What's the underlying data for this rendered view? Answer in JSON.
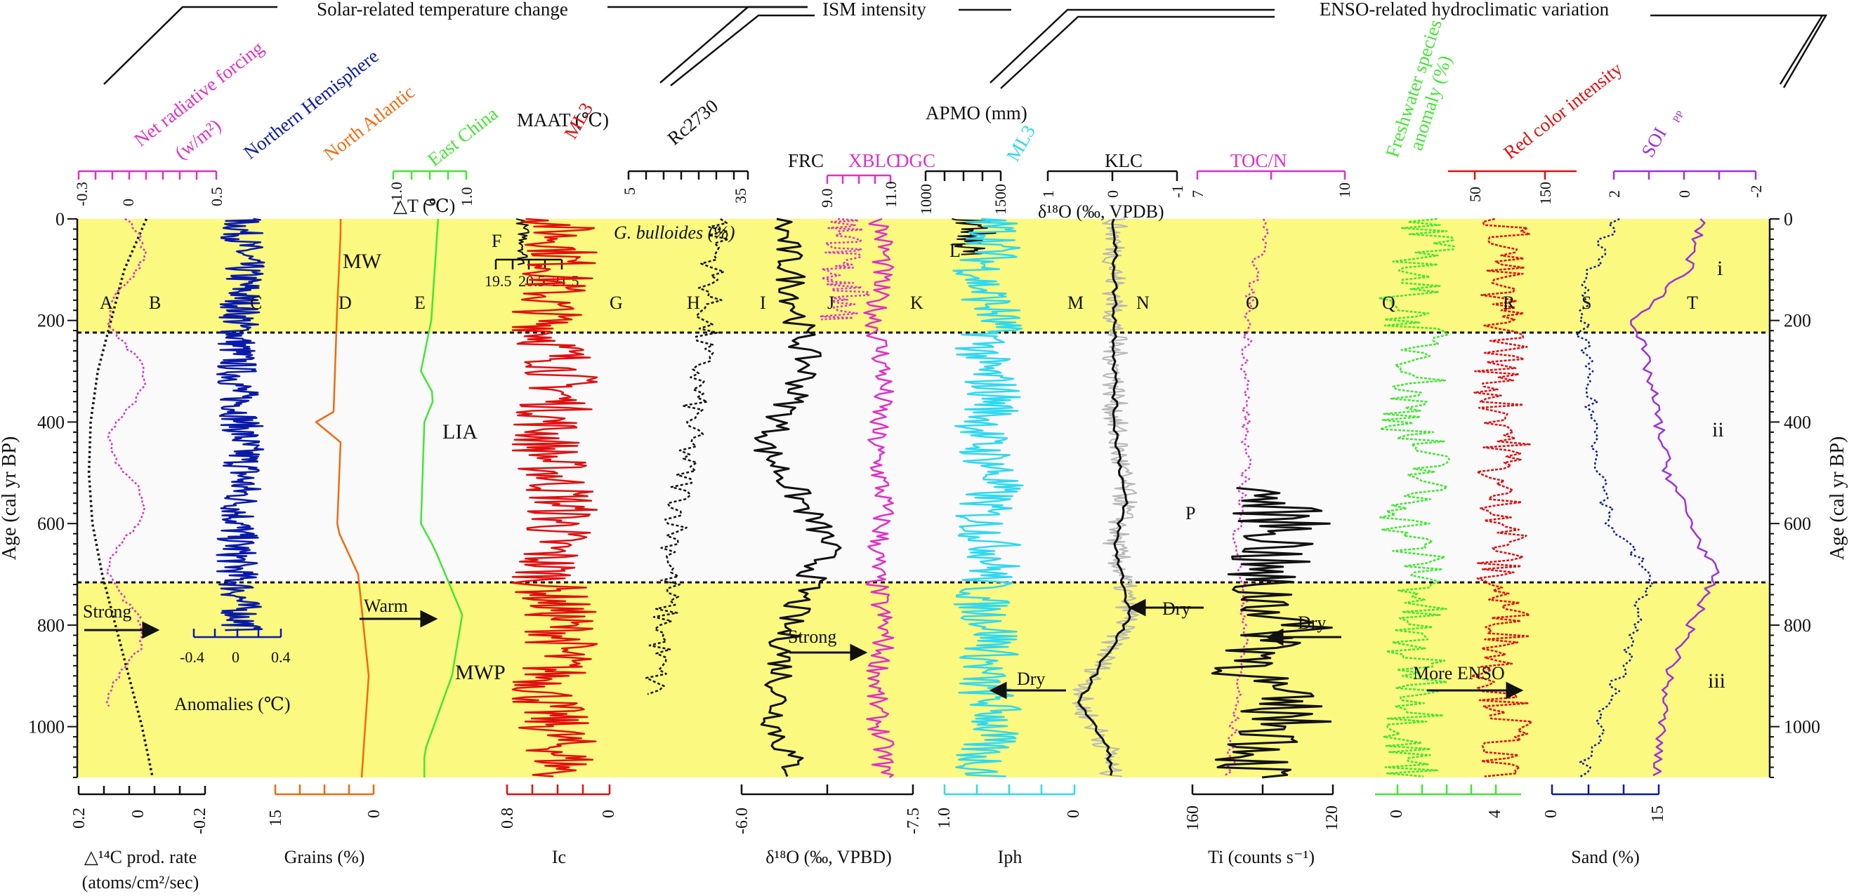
{
  "chart_data": {
    "type": "line",
    "layout": "stacked-proxy-columns",
    "colors": {
      "band_warm": "#fbf97f",
      "black": "#111111",
      "magenta": "#e030c8",
      "navy": "#0a1aa8",
      "orange": "#f06a10",
      "green": "#44e634",
      "red": "#e01010",
      "cyan": "#30d8f0",
      "gray": "#b8b8b8",
      "violet": "#a030e0"
    },
    "age_axis": {
      "label": "Age (cal yr BP)",
      "range": [
        0,
        1100
      ],
      "ticks": [
        "0",
        "200",
        "400",
        "600",
        "800",
        "1000"
      ]
    },
    "periods": [
      {
        "name": "MW",
        "roman": "i",
        "from": 0,
        "to": 200
      },
      {
        "name": "LIA",
        "roman": "ii",
        "from": 200,
        "to": 640
      },
      {
        "name": "MWP",
        "roman": "iii",
        "from": 640,
        "to": 1100
      }
    ],
    "groups": [
      {
        "label": "Solar-related temperature change"
      },
      {
        "label": "ISM intensity"
      },
      {
        "label": "ENSO-related hydroclimatic variation"
      }
    ],
    "top_titles": {
      "net_radiative": "Net radiative forcing",
      "net_radiative_unit": "(w/m²)",
      "nh": "Northern Hemisphere",
      "na": "North Atlantic",
      "ec": "East China",
      "maat": "MAAT (℃)",
      "ml3_g": "ML3",
      "rc": "Rc2730",
      "frc": "FRC",
      "xblc": "XBLC",
      "dgc": "DGC",
      "apmo": "APMO (mm)",
      "ml3_m": "ML3",
      "klc": "KLC",
      "toc": "TOC/N",
      "fw": "Freshwater species",
      "fw2": "anomaly (%)",
      "red": "Red color intensity",
      "soi": "SOI",
      "soi_sub": "PP"
    },
    "top_ticks": {
      "net_radiative": [
        "-0.3",
        "0",
        "0.5"
      ],
      "ec": [
        "-1.0",
        "0",
        "1.0"
      ],
      "rc": [
        "5",
        "35"
      ],
      "xblc": [
        "9.0",
        "11.0"
      ],
      "apmo": [
        "1000",
        "1500"
      ],
      "klc": [
        "1",
        "0",
        "-1"
      ],
      "toc": [
        "7",
        "10"
      ],
      "red": [
        "50",
        "150"
      ],
      "soi": [
        "2",
        "0",
        "-2"
      ],
      "maat_inner": [
        "19.5",
        "20.5",
        "21.5"
      ]
    },
    "inner_labels": {
      "delta_t": "△T (℃)",
      "gbull": "G. bulloides (%)",
      "d18o_klc": "δ¹⁸O (‰, VPDB)",
      "anomalies": "Anomalies (℃)",
      "anom_ticks": [
        "-0.4",
        "0",
        "0.4"
      ]
    },
    "bottom_axes": [
      {
        "label": "△¹⁴C prod. rate",
        "label2": "(atoms/cm²/sec)",
        "ticks": [
          "0.2",
          "0",
          "-0.2"
        ]
      },
      {
        "label": "Grains (%)",
        "ticks": [
          "15",
          "0"
        ]
      },
      {
        "label": "Ic",
        "ticks": [
          "0.8",
          "0"
        ]
      },
      {
        "label": "δ¹⁸O (‰, VPBD)",
        "ticks": [
          "-6.0",
          "-7.5"
        ]
      },
      {
        "label": "Iph",
        "ticks": [
          "1.0",
          "0"
        ]
      },
      {
        "label": "Ti (counts s⁻¹)",
        "ticks": [
          "160",
          "120"
        ]
      },
      {
        "label": "",
        "ticks": [
          "0",
          "4"
        ]
      },
      {
        "label": "Sand (%)",
        "ticks": [
          "0",
          "15"
        ]
      }
    ],
    "series_letters": [
      "A",
      "B",
      "C",
      "D",
      "E",
      "F",
      "G",
      "H",
      "I",
      "J",
      "K",
      "L",
      "M",
      "N",
      "O",
      "P",
      "Q",
      "R",
      "S",
      "T"
    ],
    "annotations": {
      "strong": "Strong",
      "warm": "Warm",
      "dry": "Dry",
      "more_enso": "More ENSO"
    },
    "series_profiles": [
      {
        "name": "A",
        "points": [
          [
            0,
            0.75
          ],
          [
            100,
            0.5
          ],
          [
            200,
            0.35
          ],
          [
            300,
            0.2
          ],
          [
            400,
            0.12
          ],
          [
            500,
            0.1
          ],
          [
            600,
            0.14
          ],
          [
            700,
            0.25
          ],
          [
            800,
            0.4
          ],
          [
            900,
            0.55
          ],
          [
            1000,
            0.7
          ],
          [
            1100,
            0.82
          ]
        ]
      },
      {
        "name": "D",
        "points": [
          [
            0,
            0.55
          ],
          [
            30,
            0.55
          ],
          [
            180,
            0.5
          ],
          [
            380,
            0.45
          ],
          [
            400,
            0.2
          ],
          [
            440,
            0.55
          ],
          [
            610,
            0.5
          ],
          [
            700,
            0.8
          ],
          [
            900,
            0.95
          ],
          [
            1000,
            0.9
          ],
          [
            1100,
            0.85
          ]
        ]
      },
      {
        "name": "E",
        "points": [
          [
            0,
            0.55
          ],
          [
            200,
            0.45
          ],
          [
            300,
            0.3
          ],
          [
            350,
            0.5
          ],
          [
            400,
            0.35
          ],
          [
            600,
            0.3
          ],
          [
            650,
            0.5
          ],
          [
            780,
            0.9
          ],
          [
            900,
            0.75
          ],
          [
            1050,
            0.35
          ]
        ]
      },
      {
        "name": "I",
        "points": [
          [
            0,
            0.35
          ],
          [
            300,
            0.6
          ],
          [
            450,
            0.2
          ],
          [
            640,
            0.8
          ],
          [
            800,
            0.4
          ],
          [
            1000,
            0.3
          ],
          [
            1100,
            0.5
          ]
        ]
      },
      {
        "name": "N",
        "points": [
          [
            0,
            0.5
          ],
          [
            200,
            0.5
          ],
          [
            400,
            0.5
          ],
          [
            560,
            0.6
          ],
          [
            640,
            0.5
          ],
          [
            780,
            0.65
          ],
          [
            950,
            0.15
          ],
          [
            1050,
            0.45
          ]
        ]
      },
      {
        "name": "O",
        "points": [
          [
            0,
            0.7
          ],
          [
            150,
            0.5
          ],
          [
            300,
            0.45
          ],
          [
            500,
            0.45
          ],
          [
            620,
            0.35
          ],
          [
            800,
            0.45
          ],
          [
            1000,
            0.3
          ],
          [
            1100,
            0.25
          ]
        ]
      },
      {
        "name": "S",
        "points": [
          [
            0,
            0.5
          ],
          [
            150,
            0.15
          ],
          [
            300,
            0.2
          ],
          [
            600,
            0.45
          ],
          [
            700,
            0.85
          ],
          [
            900,
            0.55
          ],
          [
            1100,
            0.15
          ]
        ]
      },
      {
        "name": "T",
        "points": [
          [
            0,
            0.7
          ],
          [
            100,
            0.6
          ],
          [
            200,
            0.2
          ],
          [
            300,
            0.3
          ],
          [
            500,
            0.45
          ],
          [
            700,
            0.8
          ],
          [
            900,
            0.45
          ],
          [
            1100,
            0.35
          ]
        ]
      }
    ]
  }
}
